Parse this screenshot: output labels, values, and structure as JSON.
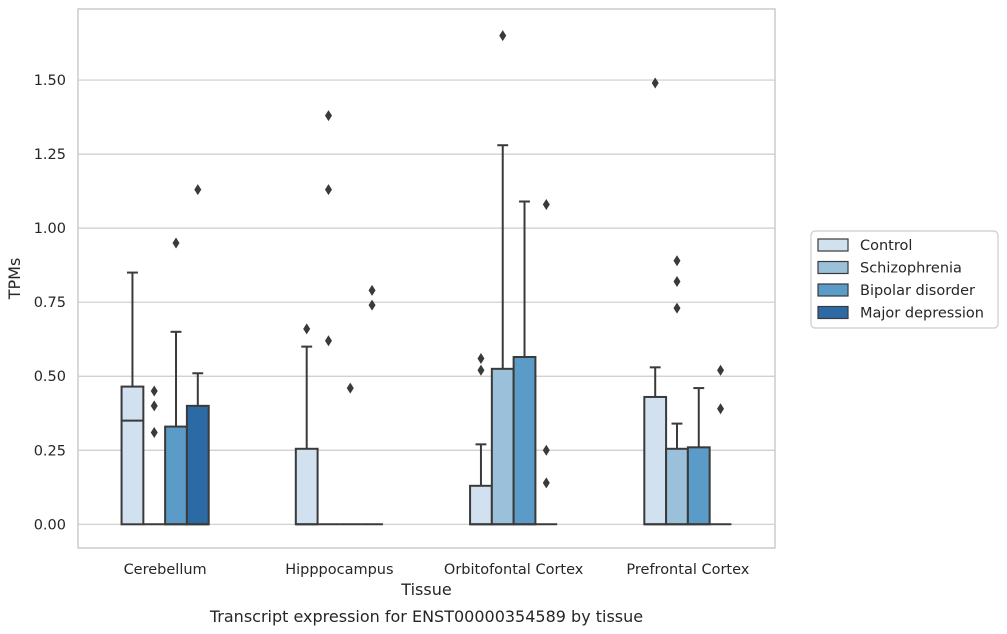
{
  "chart_data": {
    "type": "box",
    "title": "",
    "caption": "Transcript expression for ENST00000354589 by tissue",
    "xlabel": "Tissue",
    "ylabel": "TPMs",
    "ylim": [
      -0.08,
      1.74
    ],
    "yticks": [
      0.0,
      0.25,
      0.5,
      0.75,
      1.0,
      1.25,
      1.5
    ],
    "ytick_labels": [
      "0.00",
      "0.25",
      "0.50",
      "0.75",
      "1.00",
      "1.25",
      "1.50"
    ],
    "grid": "horizontal",
    "legend_position": "right",
    "categories": [
      "Cerebellum",
      "Hipppocampus",
      "Orbitofontal Cortex",
      "Prefrontal Cortex"
    ],
    "series": [
      {
        "name": "Control",
        "color": "#d1e1f0",
        "boxes": [
          {
            "q1": 0.0,
            "median": 0.35,
            "q3": 0.465,
            "whisker_low": 0.0,
            "whisker_high": 0.85,
            "outliers": []
          },
          {
            "q1": 0.0,
            "median": 0.0,
            "q3": 0.255,
            "whisker_low": 0.0,
            "whisker_high": 0.6,
            "outliers": [
              0.66
            ]
          },
          {
            "q1": 0.0,
            "median": 0.0,
            "q3": 0.13,
            "whisker_low": 0.0,
            "whisker_high": 0.27,
            "outliers": [
              0.52,
              0.56
            ]
          },
          {
            "q1": 0.0,
            "median": 0.0,
            "q3": 0.43,
            "whisker_low": 0.0,
            "whisker_high": 0.53,
            "outliers": [
              1.49
            ]
          }
        ]
      },
      {
        "name": "Schizophrenia",
        "color": "#9ac0da",
        "boxes": [
          {
            "q1": 0.0,
            "median": 0.0,
            "q3": 0.0,
            "whisker_low": 0.0,
            "whisker_high": 0.0,
            "outliers": [
              0.31,
              0.4,
              0.45
            ]
          },
          {
            "q1": 0.0,
            "median": 0.0,
            "q3": 0.0,
            "whisker_low": 0.0,
            "whisker_high": 0.0,
            "outliers": [
              0.62,
              1.13,
              1.38
            ]
          },
          {
            "q1": 0.0,
            "median": 0.0,
            "q3": 0.525,
            "whisker_low": 0.0,
            "whisker_high": 1.28,
            "outliers": [
              1.65
            ]
          },
          {
            "q1": 0.0,
            "median": 0.0,
            "q3": 0.255,
            "whisker_low": 0.0,
            "whisker_high": 0.34,
            "outliers": [
              0.73,
              0.82,
              0.89
            ]
          }
        ]
      },
      {
        "name": "Bipolar disorder",
        "color": "#5b9bc7",
        "boxes": [
          {
            "q1": 0.0,
            "median": 0.0,
            "q3": 0.33,
            "whisker_low": 0.0,
            "whisker_high": 0.65,
            "outliers": [
              0.95
            ]
          },
          {
            "q1": 0.0,
            "median": 0.0,
            "q3": 0.0,
            "whisker_low": 0.0,
            "whisker_high": 0.0,
            "outliers": [
              0.46
            ]
          },
          {
            "q1": 0.0,
            "median": 0.0,
            "q3": 0.565,
            "whisker_low": 0.0,
            "whisker_high": 1.09,
            "outliers": []
          },
          {
            "q1": 0.0,
            "median": 0.0,
            "q3": 0.26,
            "whisker_low": 0.0,
            "whisker_high": 0.46,
            "outliers": []
          }
        ]
      },
      {
        "name": "Major depression",
        "color": "#2c6aa6",
        "boxes": [
          {
            "q1": 0.0,
            "median": 0.0,
            "q3": 0.4,
            "whisker_low": 0.0,
            "whisker_high": 0.51,
            "outliers": [
              1.13
            ]
          },
          {
            "q1": 0.0,
            "median": 0.0,
            "q3": 0.0,
            "whisker_low": 0.0,
            "whisker_high": 0.0,
            "outliers": [
              0.74,
              0.79
            ]
          },
          {
            "q1": 0.0,
            "median": 0.0,
            "q3": 0.0,
            "whisker_low": 0.0,
            "whisker_high": 0.0,
            "outliers": [
              0.14,
              0.25,
              1.08
            ]
          },
          {
            "q1": 0.0,
            "median": 0.0,
            "q3": 0.0,
            "whisker_low": 0.0,
            "whisker_high": 0.0,
            "outliers": [
              0.39,
              0.52
            ]
          }
        ]
      }
    ]
  }
}
